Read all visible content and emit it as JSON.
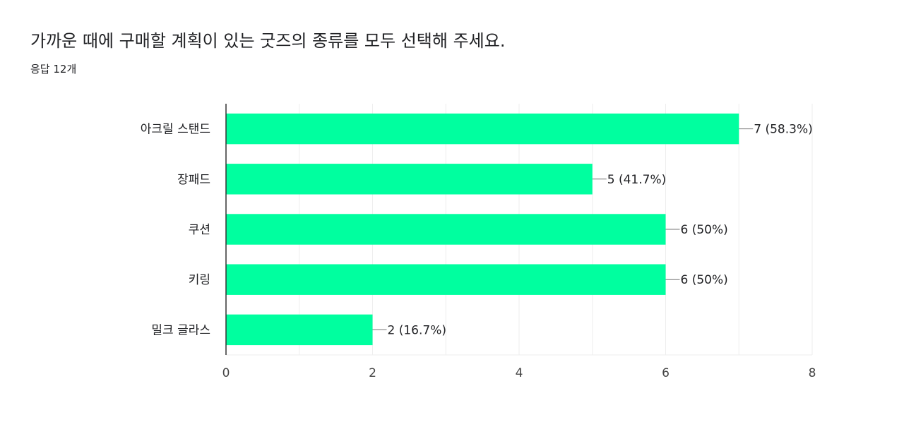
{
  "question": {
    "title": "가까운 때에 구매할 계획이 있는 굿즈의 종류를 모두 선택해 주세요.",
    "response_count": "응답 12개"
  },
  "colors": {
    "bar": "#00ff9f",
    "axis": "#333333",
    "grid": "#eeeeee",
    "text": "#202124"
  },
  "chart_data": {
    "type": "bar",
    "orientation": "horizontal",
    "categories": [
      "아크릴 스탠드",
      "장패드",
      "쿠션",
      "키링",
      "밀크 글라스"
    ],
    "values": [
      7,
      5,
      6,
      6,
      2
    ],
    "value_labels": [
      "7 (58.3%)",
      "5 (41.7%)",
      "6 (50%)",
      "6 (50%)",
      "2 (16.7%)"
    ],
    "xlim": [
      0,
      8
    ],
    "xticks": [
      "0",
      "2",
      "4",
      "6",
      "8"
    ],
    "grid": true
  }
}
